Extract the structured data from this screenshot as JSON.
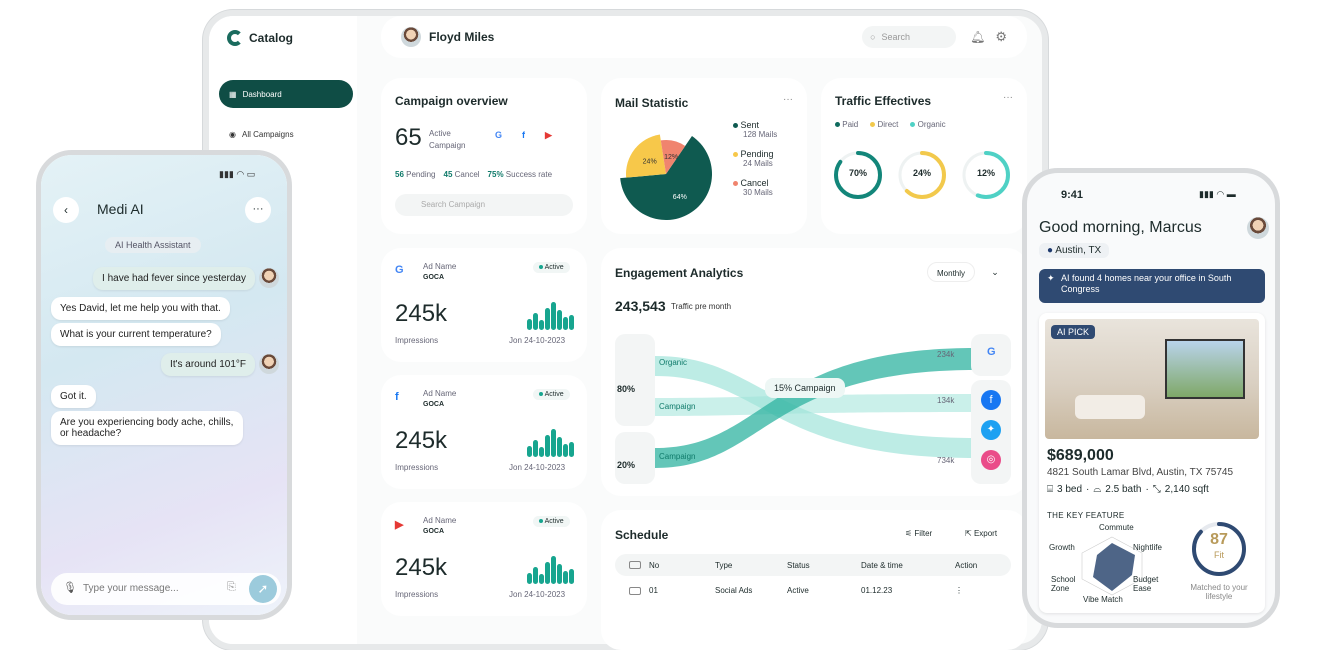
{
  "laptop": {
    "brand": "Catalog",
    "nav": [
      {
        "label": "Dashboard",
        "active": true
      },
      {
        "label": "All Campaigns",
        "active": false
      }
    ],
    "user": "Floyd Miles",
    "search_placeholder": "Search",
    "campaign": {
      "title": "Campaign overview",
      "count": "65",
      "count_label": "Active Campaign",
      "pending": "56",
      "pending_label": "Pending",
      "cancel": "45",
      "cancel_label": "Cancel",
      "success": "75%",
      "success_label": "Success rate",
      "search_placeholder": "Search Campaign"
    },
    "mail": {
      "title": "Mail Statistic",
      "slices": [
        {
          "label": "64%",
          "value": 64,
          "color": "#0f5a50"
        },
        {
          "label": "24%",
          "value": 24,
          "color": "#f7c84a"
        },
        {
          "label": "12%",
          "value": 12,
          "color": "#f0846e"
        }
      ],
      "legend": [
        {
          "name": "Sent",
          "sub": "128 Mails",
          "color": "#0f5a50"
        },
        {
          "name": "Pending",
          "sub": "24 Mails",
          "color": "#f7c84a"
        },
        {
          "name": "Cancel",
          "sub": "30 Mails",
          "color": "#f0846e"
        }
      ]
    },
    "traffic": {
      "title": "Traffic Effectives",
      "legend": [
        {
          "name": "Paid",
          "color": "#0f6b5e"
        },
        {
          "name": "Direct",
          "color": "#f2c94c"
        },
        {
          "name": "Organic",
          "color": "#4fd1c5"
        }
      ],
      "rings": [
        {
          "label": "70%",
          "value": 70,
          "color": "#13867a"
        },
        {
          "label": "24%",
          "value": 24,
          "color": "#f2c94c"
        },
        {
          "label": "12%",
          "value": 12,
          "color": "#4fd1c5"
        }
      ]
    },
    "ads": [
      {
        "source": "G",
        "label": "Ad Name",
        "name": "GOCA",
        "status": "Active",
        "value": "245k",
        "metric": "Impressions",
        "date": "Jon 24-10-2023",
        "bars": [
          0.4,
          0.6,
          0.35,
          0.8,
          1,
          0.7,
          0.45,
          0.55
        ],
        "color": "#4285f4"
      },
      {
        "source": "f",
        "label": "Ad Name",
        "name": "GOCA",
        "status": "Active",
        "value": "245k",
        "metric": "Impressions",
        "date": "Jon 24-10-2023",
        "bars": [
          0.4,
          0.6,
          0.35,
          0.8,
          1,
          0.7,
          0.45,
          0.55
        ],
        "color": "#1877f2"
      },
      {
        "source": "▶",
        "label": "Ad Name",
        "name": "GOCA",
        "status": "Active",
        "value": "245k",
        "metric": "Impressions",
        "date": "Jon 24-10-2023",
        "bars": [
          0.4,
          0.6,
          0.35,
          0.8,
          1,
          0.7,
          0.45,
          0.55
        ],
        "color": "#e53935"
      }
    ],
    "engagement": {
      "title": "Engagement Analytics",
      "period": "Monthly",
      "total": "243,543",
      "total_label": "Traffic pre month",
      "split_top": "80%",
      "split_bottom": "20%",
      "center": "15% Campaign",
      "flows": [
        "Organic",
        "Campaign",
        "Campaign"
      ],
      "values": [
        "234k",
        "134k",
        "734k"
      ]
    },
    "schedule": {
      "title": "Schedule",
      "filter": "Filter",
      "export": "Export",
      "cols": [
        "No",
        "Type",
        "Status",
        "Date & time",
        "Action"
      ],
      "rows": [
        {
          "no": "01",
          "type": "Social Ads",
          "status": "Active",
          "date": "01.12.23"
        }
      ]
    }
  },
  "chat": {
    "title": "Medi AI",
    "tag": "AI Health Assistant",
    "input_placeholder": "Type your message...",
    "messages": [
      {
        "text": "I have had fever since yesterday",
        "me": true
      },
      {
        "text": "Yes David, let me help you with that.",
        "me": false
      },
      {
        "text": "What is your current temperature?",
        "me": false
      },
      {
        "text": "It's around 101°F",
        "me": true
      },
      {
        "text": "Got it.",
        "me": false
      },
      {
        "text": "Are you experiencing body ache, chills, or headache?",
        "me": false
      }
    ]
  },
  "home": {
    "time": "9:41",
    "greeting": "Good morning, Marcus",
    "location": "Austin, TX",
    "ai_banner": "AI found 4 homes near your office in South Congress",
    "badge": "AI PICK",
    "price": "$689,000",
    "address": "4821 South Lamar Blvd, Austin, TX 75745",
    "bed": "3 bed",
    "bath": "2.5 bath",
    "sqft": "2,140 sqft",
    "feature_title": "THE KEY FEATURE",
    "radar": [
      "Commute",
      "Nightlife",
      "Budget Ease",
      "Vibe Match",
      "School Zone",
      "Growth"
    ],
    "fit": "87",
    "fit_label": "Fit",
    "fit_caption": "Matched to your lifestyle"
  }
}
